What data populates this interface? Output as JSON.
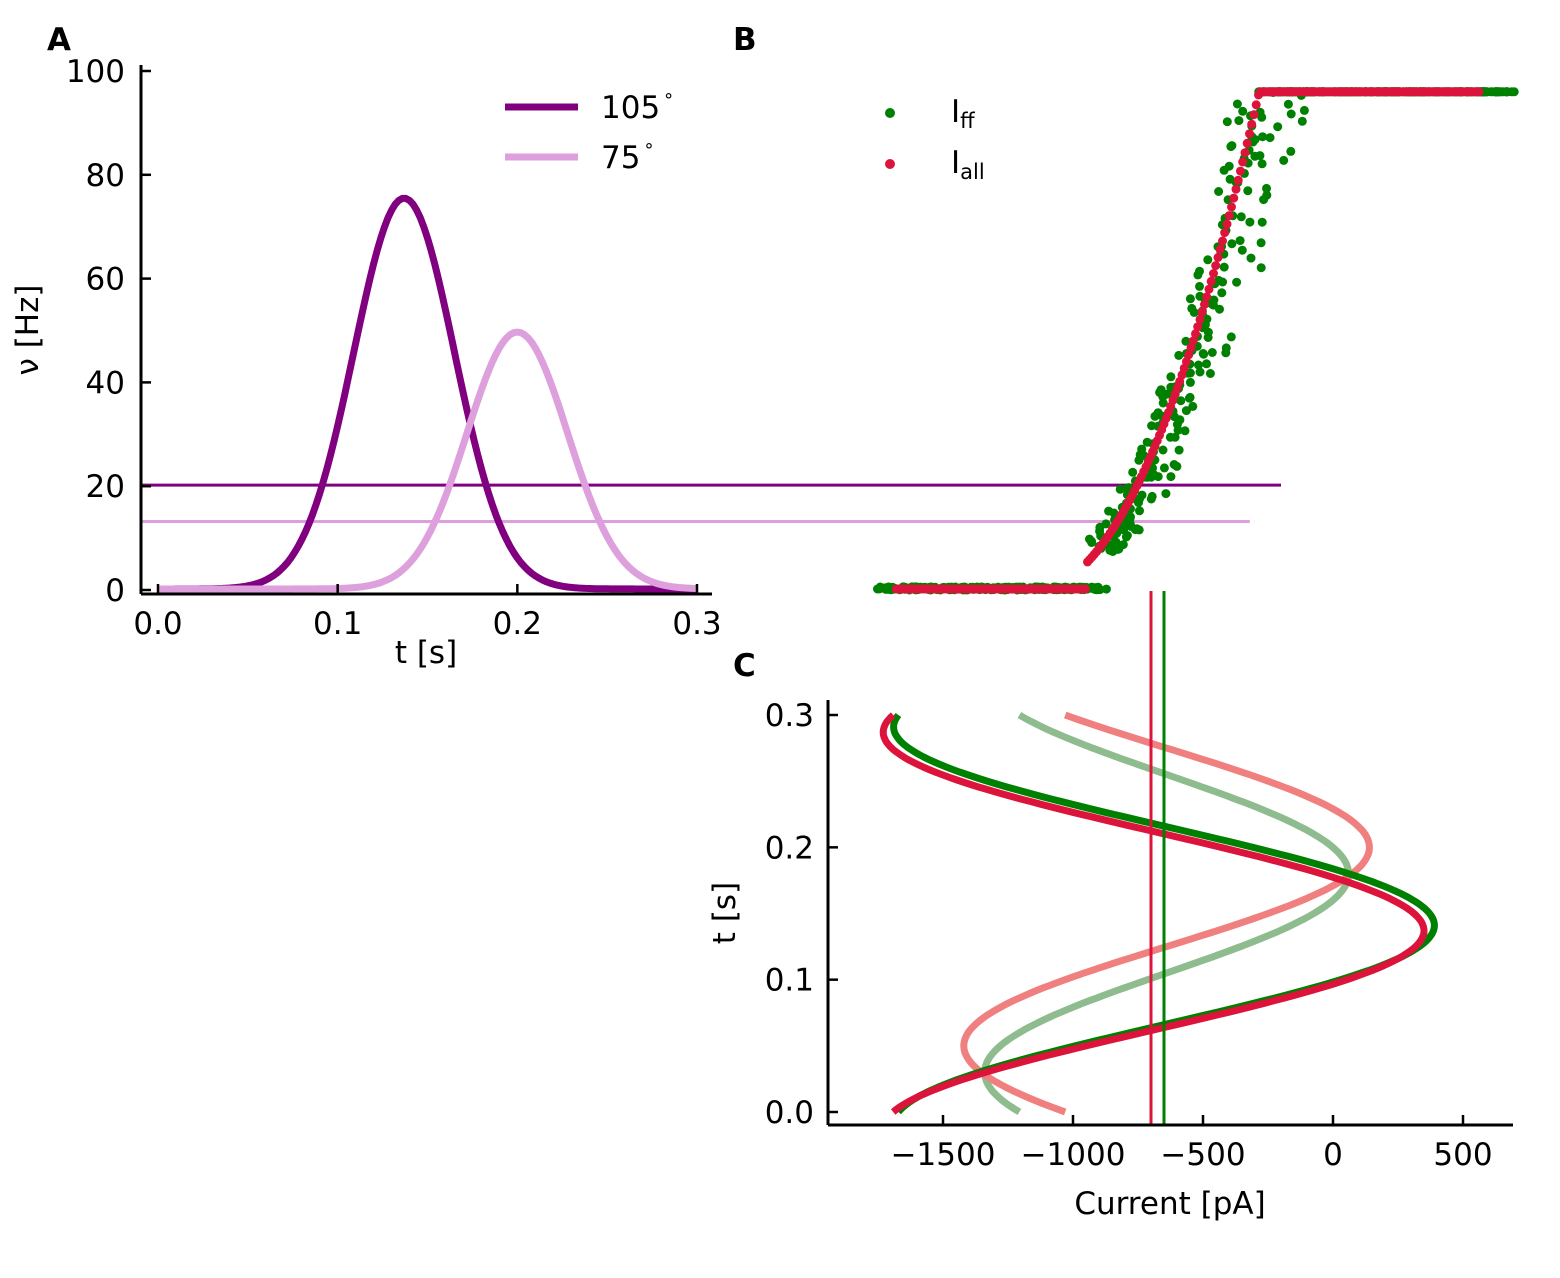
{
  "colors": {
    "purple": "#800080",
    "plum": "#dda0dd",
    "green": "#008000",
    "crimson": "#dc143c",
    "lightgreen": "#8fbc8f",
    "lightcoral": "#f08080"
  },
  "chart_data": [
    {
      "panel": "A",
      "type": "line",
      "xlabel": "t [s]",
      "ylabel": "ν [Hz]",
      "xlim": [
        -0.01,
        0.31
      ],
      "ylim": [
        -1,
        101
      ],
      "xticks": [
        "0.0",
        "0.1",
        "0.2",
        "0.3"
      ],
      "yticks": [
        "0",
        "20",
        "40",
        "60",
        "80",
        "100"
      ],
      "legend": {
        "position": "top-right",
        "entries": [
          "105$^\\circ$",
          "75$^\\circ$"
        ]
      },
      "legend_display": [
        "105",
        "75"
      ],
      "legend_suffix": "°",
      "series": [
        {
          "name": "105°",
          "color": "#800080",
          "peak_t": 0.137,
          "peak_rate": 75.3,
          "width": 0.028,
          "t_start": 0.0,
          "t_end": 0.3
        },
        {
          "name": "75°",
          "color": "#dda0dd",
          "peak_t": 0.2,
          "peak_rate": 49.5,
          "width": 0.028,
          "t_start": 0.0,
          "t_end": 0.3
        }
      ],
      "hlines": [
        {
          "y": 20.2,
          "color": "#800080",
          "x_end_current": -200
        },
        {
          "y": 13.2,
          "color": "#dda0dd",
          "x_end_current": -320
        }
      ]
    },
    {
      "panel": "B",
      "type": "scatter",
      "legend": {
        "position": "top-left",
        "entries": [
          "I_ff",
          "I_all"
        ]
      },
      "legend_display": [
        {
          "main": "I",
          "sub": "ff"
        },
        {
          "main": "I",
          "sub": "all"
        }
      ],
      "x_range_current": [
        -1700,
        660
      ],
      "y_range_rate": [
        0,
        96
      ],
      "series": [
        {
          "name": "I_ff",
          "color": "#008000",
          "threshold_current": -650
        },
        {
          "name": "I_all",
          "color": "#dc143c",
          "threshold_current": -700
        }
      ],
      "vlines": [
        {
          "x": -700,
          "color": "#dc143c"
        },
        {
          "x": -650,
          "color": "#008000"
        }
      ]
    },
    {
      "panel": "C",
      "type": "line",
      "xlabel": "Current [pA]",
      "ylabel": "t [s]",
      "xlim": [
        -1940,
        700
      ],
      "ylim": [
        -0.01,
        0.31
      ],
      "xticks": [
        {
          "value": -1500,
          "label": "−1500"
        },
        {
          "value": -1000,
          "label": "−1000"
        },
        {
          "value": -500,
          "label": "−500"
        },
        {
          "value": 0,
          "label": "0"
        },
        {
          "value": 500,
          "label": "500"
        }
      ],
      "yticks": [
        {
          "value": 0.0,
          "label": "0.0"
        },
        {
          "value": 0.1,
          "label": "0.1"
        },
        {
          "value": 0.2,
          "label": "0.2"
        },
        {
          "value": 0.3,
          "label": "0.3"
        }
      ],
      "series": [
        {
          "name": "I_ff 105°",
          "color": "#008000",
          "mean": -650,
          "amp": 1040,
          "phase_t": 0.141
        },
        {
          "name": "I_all 105°",
          "color": "#dc143c",
          "mean": -690,
          "amp": 1040,
          "phase_t": 0.137
        },
        {
          "name": "I_ff 75°",
          "color": "#8fbc8f",
          "mean": -640,
          "amp": 700,
          "phase_t": 0.18
        },
        {
          "name": "I_all 75°",
          "color": "#f08080",
          "mean": -640,
          "amp": 780,
          "phase_t": 0.2
        }
      ],
      "vlines": [
        {
          "x": -700,
          "color": "#dc143c"
        },
        {
          "x": -650,
          "color": "#008000"
        }
      ]
    }
  ],
  "labels": {
    "panel_a": "A",
    "panel_b": "B",
    "panel_c": "C"
  }
}
